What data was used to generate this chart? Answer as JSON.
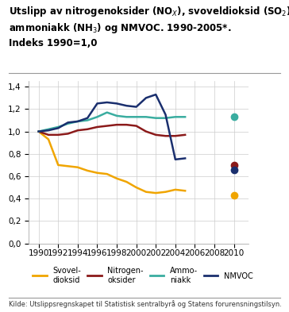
{
  "source": "Kilde: Utslippsregnskapet til Statistisk sentralbyrå og Statens forurensningstilsyn.",
  "years": [
    1990,
    1991,
    1992,
    1993,
    1994,
    1995,
    1996,
    1997,
    1998,
    1999,
    2000,
    2001,
    2002,
    2003,
    2004,
    2005
  ],
  "svoveldioksid": [
    1.0,
    0.93,
    0.7,
    0.69,
    0.68,
    0.65,
    0.63,
    0.62,
    0.58,
    0.55,
    0.5,
    0.46,
    0.45,
    0.46,
    0.48,
    0.47
  ],
  "nitrogenoksider": [
    1.0,
    0.97,
    0.97,
    0.98,
    1.01,
    1.02,
    1.04,
    1.05,
    1.06,
    1.06,
    1.05,
    1.0,
    0.97,
    0.96,
    0.96,
    0.97
  ],
  "ammoniakk": [
    1.0,
    1.02,
    1.04,
    1.07,
    1.09,
    1.1,
    1.13,
    1.17,
    1.14,
    1.13,
    1.13,
    1.13,
    1.12,
    1.12,
    1.13,
    1.13
  ],
  "nmvoc": [
    1.0,
    1.01,
    1.03,
    1.08,
    1.09,
    1.12,
    1.25,
    1.26,
    1.25,
    1.23,
    1.22,
    1.3,
    1.33,
    1.15,
    0.75,
    0.76
  ],
  "dot_year": 2010,
  "dot_svoveldioksid": 0.43,
  "dot_nitrogenoksider": 0.7,
  "dot_ammoniakk": 1.13,
  "dot_nmvoc": 0.66,
  "color_svoveldioksid": "#f0a500",
  "color_nitrogenoksider": "#8b1a1a",
  "color_ammoniakk": "#3aada0",
  "color_nmvoc": "#1a2f6e",
  "xlim_min": 1989.0,
  "xlim_max": 2011.5,
  "ylim_min": 0.0,
  "ylim_max": 1.45,
  "xticks": [
    1990,
    1992,
    1994,
    1996,
    1998,
    2000,
    2002,
    2004,
    2006,
    2008,
    2010
  ],
  "yticks": [
    0.0,
    0.2,
    0.4,
    0.6,
    0.8,
    1.0,
    1.2,
    1.4
  ],
  "legend_labels": [
    "Svovel-\ndioksid",
    "Nitrogen-\noksider",
    "Ammo-\nniakk",
    "NMVOC"
  ],
  "background_color": "#ffffff",
  "grid_color": "#cccccc",
  "title_fontsize": 8.5,
  "tick_fontsize": 7.5,
  "legend_fontsize": 7.0,
  "source_fontsize": 6.0
}
